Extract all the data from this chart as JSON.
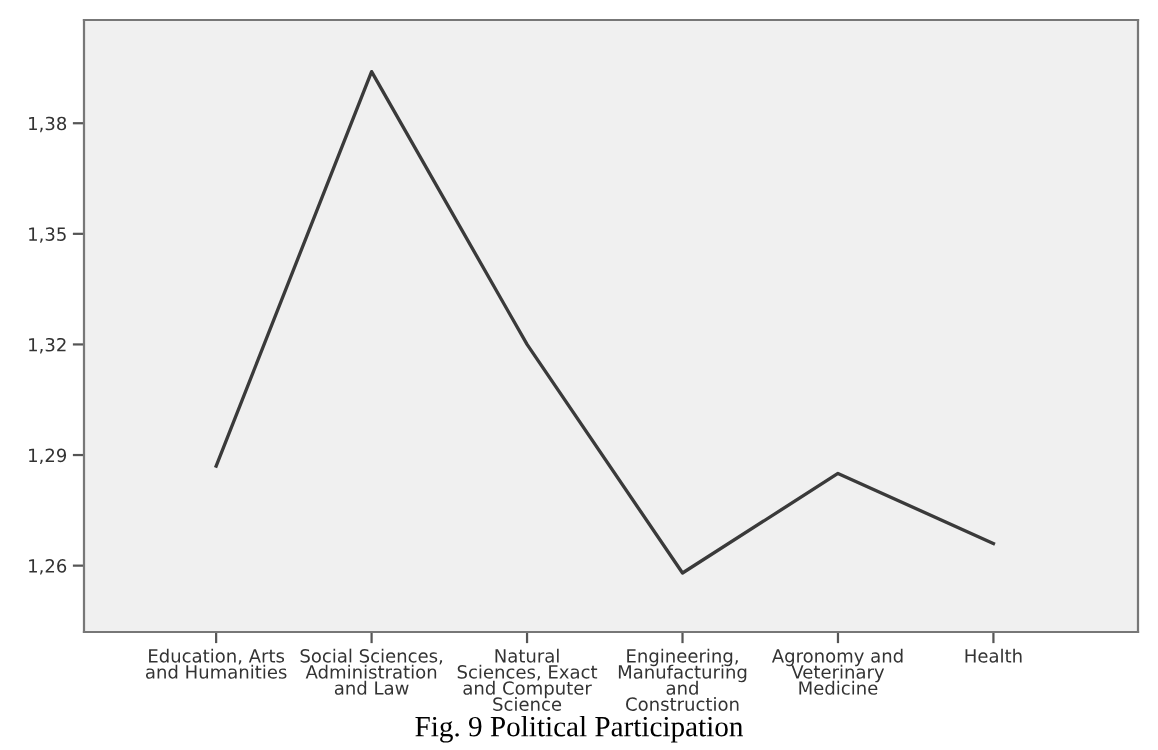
{
  "chart_data": {
    "type": "line",
    "title": "Fig. 9 Political Participation",
    "categories": [
      "Education, Arts\nand Humanities",
      "Social Sciences,\nAdministration\nand Law",
      "Natural\nSciences, Exact\nand Computer\nScience",
      "Engineering,\nManufacturing\nand\nConstruction",
      "Agronomy and\nVeterinary\nMedicine",
      "Health"
    ],
    "series": [
      {
        "color": "#3a3a3a",
        "values": [
          1.287,
          1.394,
          1.32,
          1.258,
          1.285,
          1.266
        ]
      }
    ],
    "ylim": [
      1.242,
      1.408
    ],
    "yticks": [
      {
        "value": 1.26,
        "label": "1,26"
      },
      {
        "value": 1.29,
        "label": "1,29"
      },
      {
        "value": 1.32,
        "label": "1,32"
      },
      {
        "value": 1.35,
        "label": "1,35"
      },
      {
        "value": 1.38,
        "label": "1,38"
      }
    ],
    "grid": false,
    "legend": false,
    "marker": "none",
    "line_style": "solid"
  }
}
